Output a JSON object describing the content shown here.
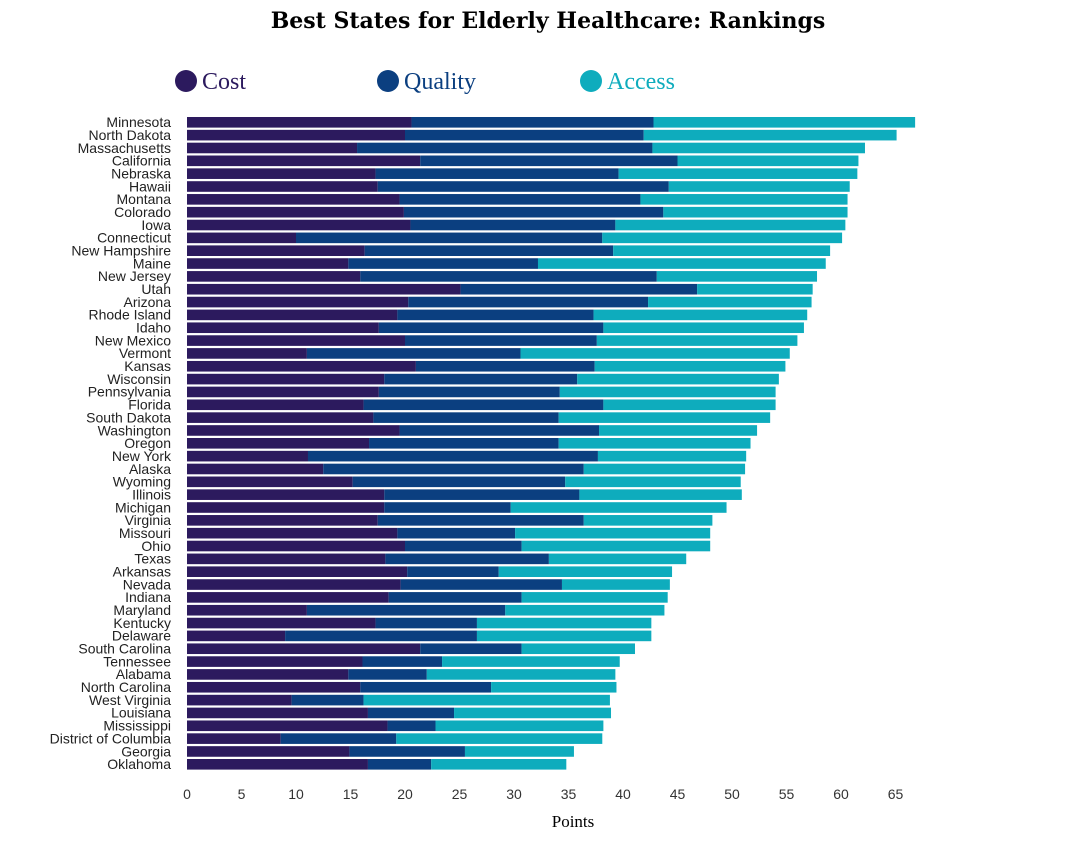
{
  "title": "Best States for Elderly Healthcare: Rankings",
  "colors": {
    "cost": "#2c1a5e",
    "quality": "#0b3f80",
    "access": "#0eacbd"
  },
  "chart_data": {
    "type": "bar",
    "orientation": "horizontal",
    "stacked": true,
    "title": "Best States for Elderly Healthcare: Rankings",
    "xlabel": "Points",
    "ylabel": "",
    "xlim": [
      0,
      67
    ],
    "xticks": [
      0,
      5,
      10,
      15,
      20,
      25,
      30,
      35,
      40,
      45,
      50,
      55,
      60,
      65
    ],
    "legend_position": "top",
    "grid": false,
    "categories": [
      "Minnesota",
      "North Dakota",
      "Massachusetts",
      "California",
      "Nebraska",
      "Hawaii",
      "Montana",
      "Colorado",
      "Iowa",
      "Connecticut",
      "New Hampshire",
      "Maine",
      "New Jersey",
      "Utah",
      "Arizona",
      "Rhode Island",
      "Idaho",
      "New Mexico",
      "Vermont",
      "Kansas",
      "Wisconsin",
      "Pennsylvania",
      "Florida",
      "South Dakota",
      "Washington",
      "Oregon",
      "New York",
      "Alaska",
      "Wyoming",
      "Illinois",
      "Michigan",
      "Virginia",
      "Missouri",
      "Ohio",
      "Texas",
      "Arkansas",
      "Nevada",
      "Indiana",
      "Maryland",
      "Kentucky",
      "Delaware",
      "South Carolina",
      "Tennessee",
      "Alabama",
      "North Carolina",
      "West Virginia",
      "Louisiana",
      "Mississippi",
      "District of Columbia",
      "Georgia",
      "Oklahoma"
    ],
    "series": [
      {
        "name": "Cost",
        "values": [
          20.6,
          20.0,
          15.6,
          21.4,
          17.3,
          17.5,
          19.5,
          19.9,
          20.5,
          10.0,
          16.3,
          14.8,
          15.9,
          25.1,
          20.3,
          19.3,
          17.6,
          20.0,
          11.0,
          21.0,
          18.1,
          17.6,
          16.2,
          17.1,
          19.5,
          16.7,
          11.1,
          12.5,
          15.2,
          18.1,
          18.1,
          17.5,
          19.3,
          20.0,
          18.2,
          20.2,
          19.6,
          18.5,
          11.0,
          17.3,
          9.0,
          21.4,
          16.1,
          14.8,
          15.9,
          9.6,
          16.6,
          18.4,
          8.6,
          14.9,
          16.6
        ]
      },
      {
        "name": "Quality",
        "values": [
          22.2,
          21.9,
          27.1,
          23.6,
          22.3,
          26.7,
          22.1,
          23.8,
          18.8,
          28.1,
          22.8,
          17.4,
          27.2,
          21.7,
          22.0,
          18.0,
          20.6,
          17.6,
          19.6,
          16.4,
          17.7,
          16.6,
          22.0,
          17.0,
          18.3,
          17.4,
          26.6,
          23.9,
          19.5,
          17.9,
          11.6,
          18.9,
          10.8,
          10.7,
          15.0,
          8.4,
          14.8,
          12.2,
          18.2,
          9.3,
          17.6,
          9.3,
          7.3,
          7.2,
          12.0,
          6.6,
          7.9,
          4.4,
          10.6,
          10.6,
          5.8
        ]
      },
      {
        "name": "Access",
        "values": [
          24.0,
          23.2,
          19.5,
          16.6,
          21.9,
          16.6,
          19.0,
          16.9,
          21.1,
          22.0,
          19.9,
          26.4,
          14.7,
          10.6,
          15.0,
          19.6,
          18.4,
          18.4,
          24.7,
          17.5,
          18.5,
          19.8,
          15.8,
          19.4,
          14.5,
          17.6,
          13.6,
          14.8,
          16.1,
          14.9,
          19.8,
          11.8,
          17.9,
          17.3,
          12.6,
          15.9,
          9.9,
          13.4,
          14.6,
          16.0,
          16.0,
          10.4,
          16.3,
          17.3,
          11.5,
          22.6,
          14.4,
          15.4,
          18.9,
          10.0,
          12.4
        ]
      }
    ]
  }
}
